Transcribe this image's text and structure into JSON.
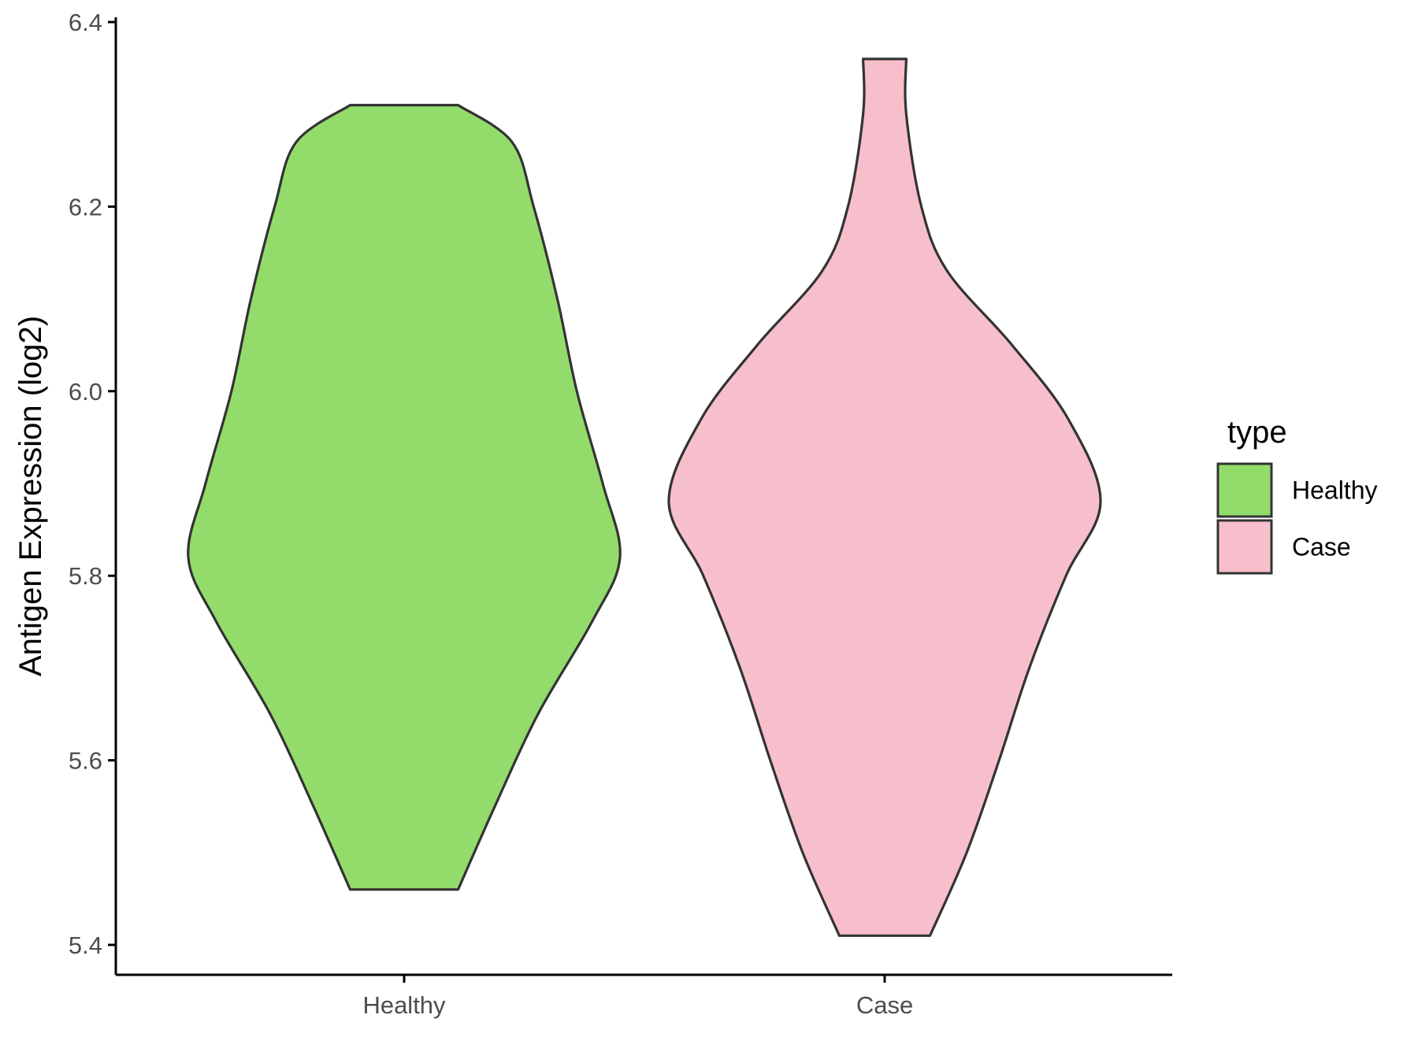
{
  "chart_data": {
    "type": "violin",
    "title": "",
    "xlabel": "",
    "ylabel": "Antigen Expression (log2)",
    "ylim": [
      5.37,
      6.41
    ],
    "yticks": [
      "5.4",
      "5.6",
      "5.8",
      "6.0",
      "6.2",
      "6.4"
    ],
    "categories": [
      "Healthy",
      "Case"
    ],
    "grid": false,
    "legend": {
      "title": "type",
      "position": "right",
      "entries": [
        "Healthy",
        "Case"
      ]
    },
    "series": [
      {
        "name": "Healthy",
        "color": "#93dc6b",
        "min": 5.46,
        "max": 6.31,
        "density_profile": [
          [
            5.46,
            0.25
          ],
          [
            5.55,
            0.42
          ],
          [
            5.65,
            0.62
          ],
          [
            5.75,
            0.87
          ],
          [
            5.82,
            1.0
          ],
          [
            5.9,
            0.92
          ],
          [
            6.0,
            0.8
          ],
          [
            6.1,
            0.71
          ],
          [
            6.2,
            0.6
          ],
          [
            6.27,
            0.5
          ],
          [
            6.31,
            0.25
          ]
        ]
      },
      {
        "name": "Case",
        "color": "#f7bfcb",
        "min": 5.41,
        "max": 6.36,
        "density_profile": [
          [
            5.41,
            0.21
          ],
          [
            5.5,
            0.38
          ],
          [
            5.6,
            0.53
          ],
          [
            5.7,
            0.67
          ],
          [
            5.8,
            0.84
          ],
          [
            5.88,
            1.0
          ],
          [
            5.97,
            0.85
          ],
          [
            6.05,
            0.59
          ],
          [
            6.13,
            0.29
          ],
          [
            6.2,
            0.17
          ],
          [
            6.3,
            0.1
          ],
          [
            6.36,
            0.1
          ]
        ]
      }
    ]
  }
}
